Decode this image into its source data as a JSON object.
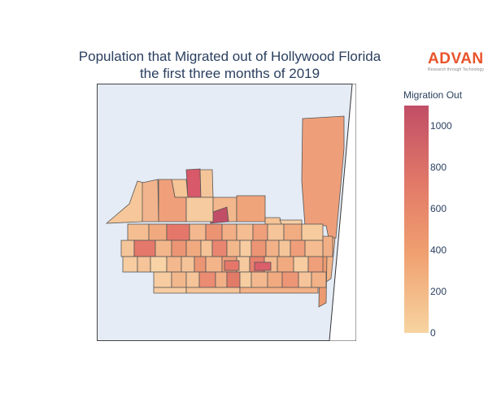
{
  "title": {
    "line1": "Population that Migrated out of Hollywood Florida",
    "line2": "the first three months of 2019"
  },
  "logo": {
    "word": "ADVAN",
    "tagline": "Research through Technology",
    "color": "#e8532a"
  },
  "colorbar": {
    "title": "Migration Out",
    "range": [
      0,
      1100
    ],
    "ticks": [
      {
        "value": 1000,
        "label": "1000"
      },
      {
        "value": 800,
        "label": "800"
      },
      {
        "value": 600,
        "label": "600"
      },
      {
        "value": 400,
        "label": "400"
      },
      {
        "value": 200,
        "label": "200"
      },
      {
        "value": 0,
        "label": "0"
      }
    ],
    "colorscale": [
      "#f7d4a0",
      "#f0a070",
      "#e27a68",
      "#c14e66"
    ]
  },
  "chart_data": {
    "type": "heatmap",
    "subtype": "choropleth",
    "title": "Population that Migrated out of Hollywood Florida the first three months of 2019",
    "colorbar_title": "Migration Out",
    "zlim": [
      0,
      1100
    ],
    "map_background": "#e5ecf6",
    "region_values": [
      {
        "region": "east-beach-strip",
        "value": 490
      },
      {
        "region": "block-a",
        "value": 1050
      },
      {
        "region": "block-b",
        "value": 780
      },
      {
        "region": "block-c",
        "value": 560
      },
      {
        "region": "block-d",
        "value": 640
      },
      {
        "region": "block-e",
        "value": 420
      },
      {
        "region": "block-f",
        "value": 300
      },
      {
        "region": "block-g",
        "value": 200
      },
      {
        "region": "block-h",
        "value": 120
      },
      {
        "region": "block-i",
        "value": 60
      }
    ]
  }
}
